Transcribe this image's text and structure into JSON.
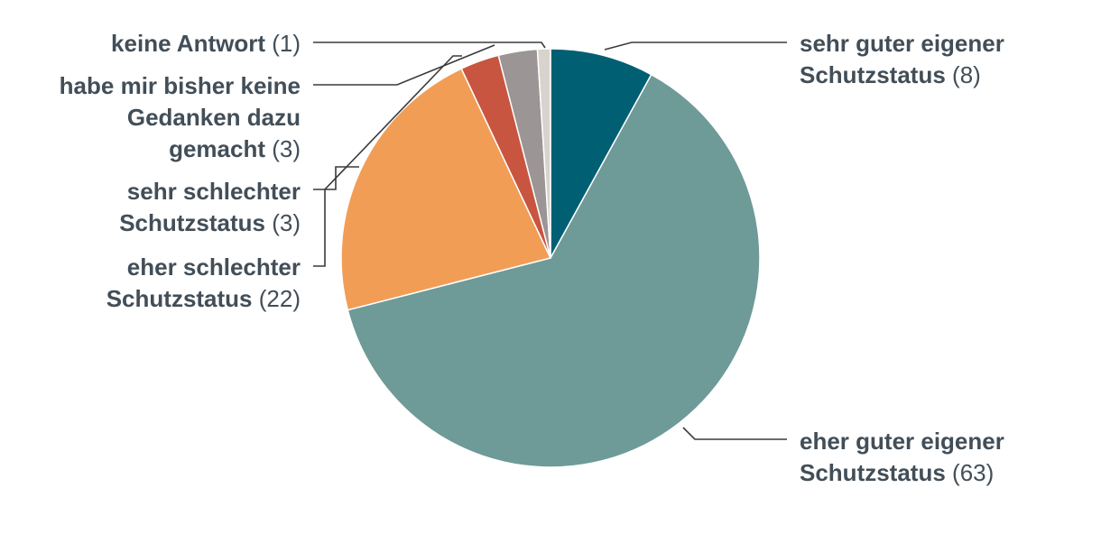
{
  "chart_data": {
    "type": "pie",
    "slices": [
      {
        "label": "sehr guter eigener Schutzstatus",
        "value": 8,
        "color": "#005f73"
      },
      {
        "label": "eher guter eigener Schutzstatus",
        "value": 63,
        "color": "#6e9a98"
      },
      {
        "label": "eher schlechter Schutzstatus",
        "value": 22,
        "color": "#f19d56"
      },
      {
        "label": "sehr schlechter Schutzstatus",
        "value": 3,
        "color": "#c85540"
      },
      {
        "label": "habe mir bisher keine Gedanken dazu gemacht",
        "value": 3,
        "color": "#9b9595"
      },
      {
        "label": "keine Antwort",
        "value": 1,
        "color": "#d8d3cd"
      }
    ],
    "labels": [
      {
        "lines": [
          "sehr guter eigener",
          "Schutzstatus"
        ],
        "count": "(8)"
      },
      {
        "lines": [
          "eher guter eigener",
          "Schutzstatus"
        ],
        "count": "(63)"
      },
      {
        "lines": [
          "eher schlechter",
          "Schutzstatus"
        ],
        "count": "(22)"
      },
      {
        "lines": [
          "sehr schlechter",
          "Schutzstatus"
        ],
        "count": "(3)"
      },
      {
        "lines": [
          "habe mir bisher keine",
          "Gedanken dazu",
          "gemacht"
        ],
        "count": "(3)"
      },
      {
        "lines": [
          "keine Antwort"
        ],
        "count": "(1)"
      }
    ]
  }
}
